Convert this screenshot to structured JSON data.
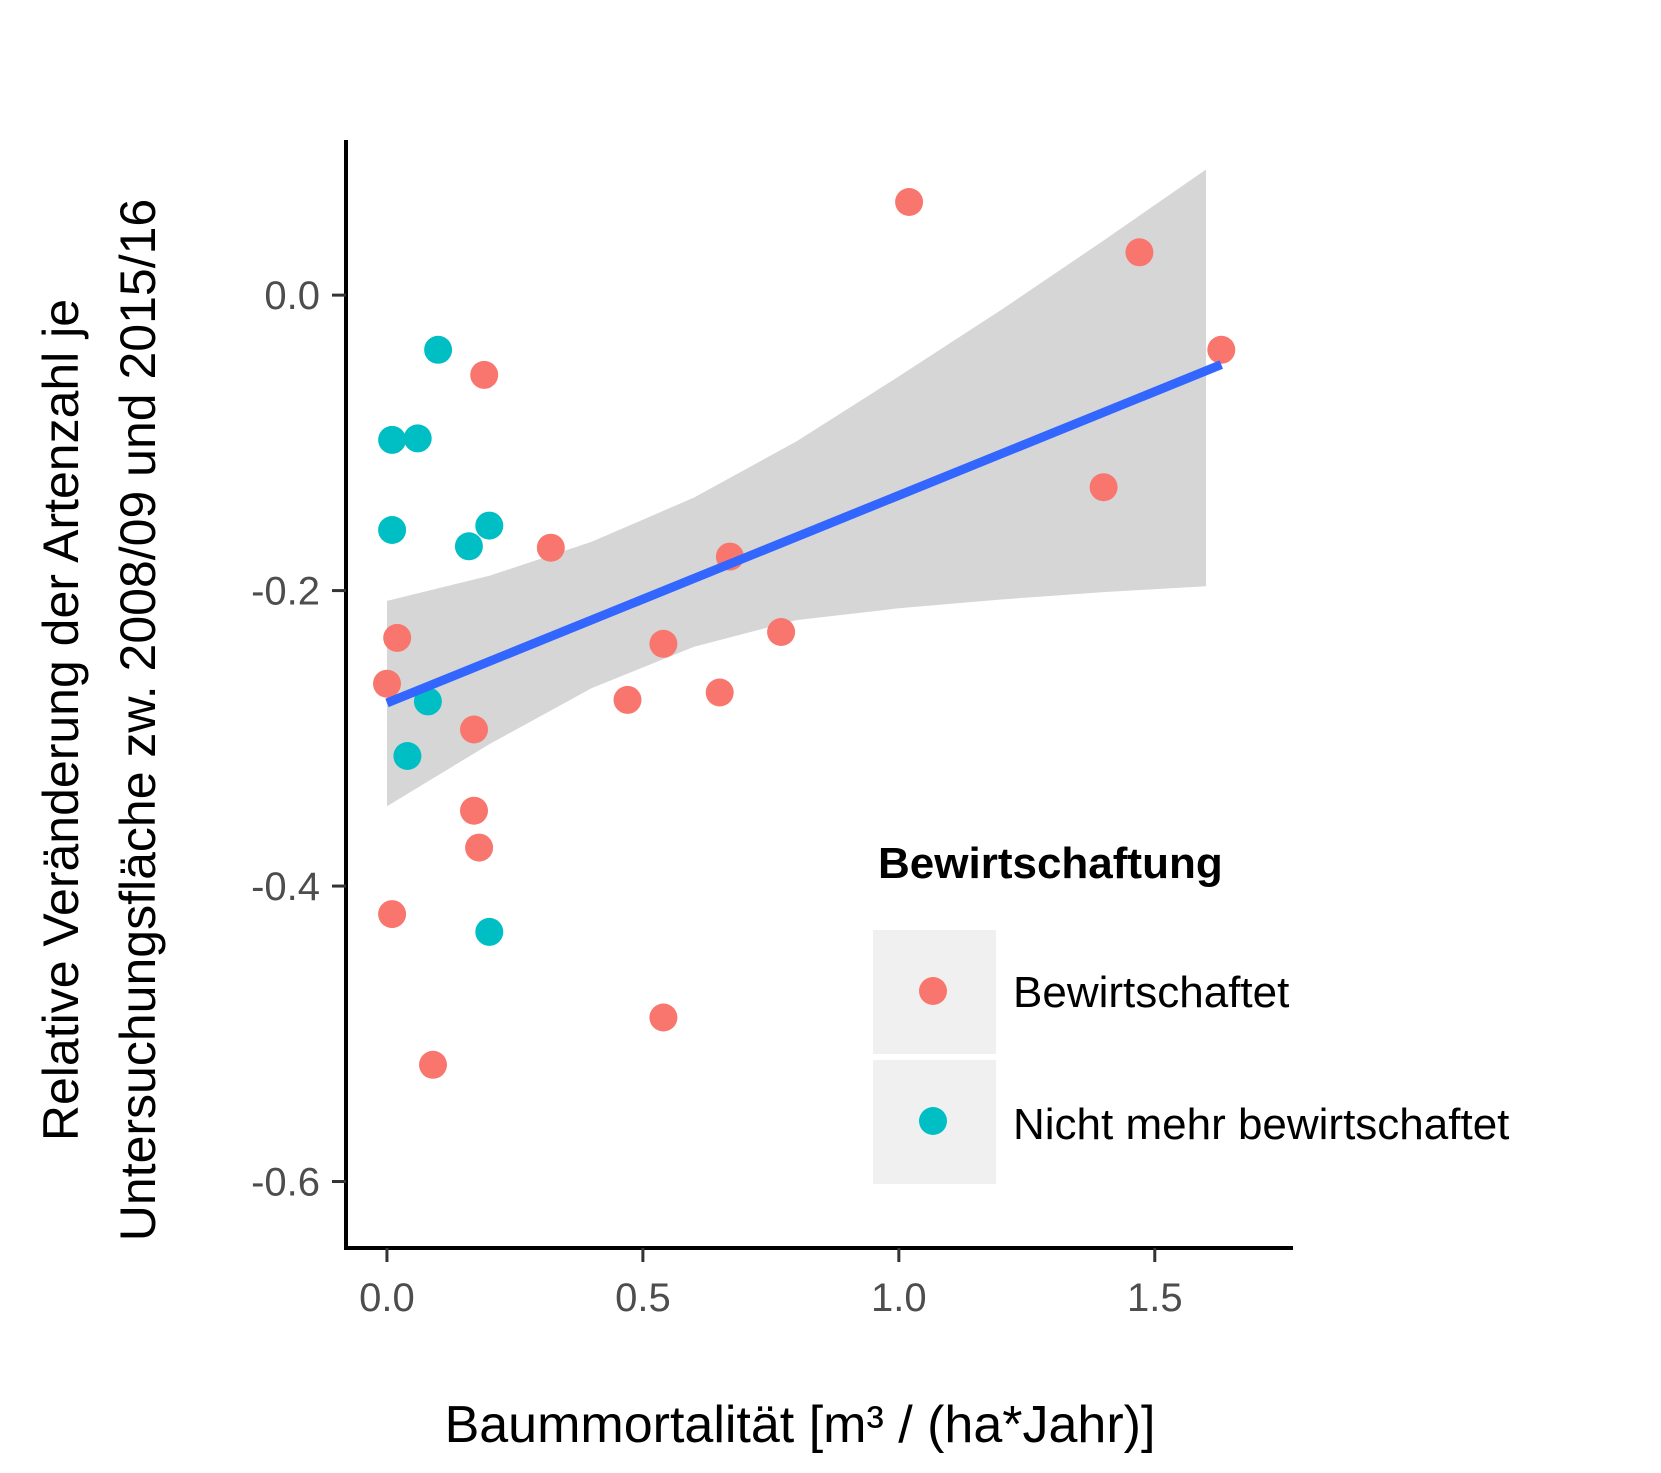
{
  "chart_data": {
    "type": "scatter",
    "title": "",
    "xlabel": "Baummortalität [m³ / (ha*Jahr)]",
    "ylabel_lines": [
      "Relative Veränderung der Artenzahl je",
      "Untersuchungsfläche zw. 2008/09 und 2015/16"
    ],
    "xlim": [
      -0.08,
      1.77
    ],
    "ylim": [
      -0.645,
      0.105
    ],
    "x_ticks": [
      0.0,
      0.5,
      1.0,
      1.5
    ],
    "x_tick_labels": [
      "0.0",
      "0.5",
      "1.0",
      "1.5"
    ],
    "y_ticks": [
      0.0,
      -0.2,
      -0.4,
      -0.6
    ],
    "y_tick_labels": [
      "0.0",
      "-0.2",
      "-0.4",
      "-0.6"
    ],
    "grid": false,
    "legend": {
      "title": "Bewirtschaftung",
      "position": "right",
      "entries": [
        "Bewirtschaftet",
        "Nicht mehr bewirtschaftet"
      ]
    },
    "series": [
      {
        "name": "Bewirtschaftet",
        "color": "#F8766D",
        "x": [
          1.02,
          1.47,
          1.63,
          0.19,
          1.4,
          0.32,
          0.67,
          0.02,
          0.54,
          0.77,
          0.0,
          0.47,
          0.65,
          0.17,
          0.17,
          0.18,
          0.01,
          0.54,
          0.09
        ],
        "y": [
          0.063,
          0.029,
          -0.037,
          -0.054,
          -0.13,
          -0.171,
          -0.177,
          -0.232,
          -0.236,
          -0.228,
          -0.263,
          -0.274,
          -0.269,
          -0.294,
          -0.349,
          -0.374,
          -0.419,
          -0.489,
          -0.521
        ]
      },
      {
        "name": "Nicht mehr bewirtschaftet",
        "color": "#00BFC4",
        "x": [
          0.1,
          0.01,
          0.06,
          0.01,
          0.2,
          0.16,
          0.08,
          0.04,
          0.2
        ],
        "y": [
          -0.037,
          -0.098,
          -0.097,
          -0.159,
          -0.156,
          -0.17,
          -0.275,
          -0.312,
          -0.431
        ]
      }
    ],
    "trend_line": {
      "color": "#3366FF",
      "x": [
        0.0,
        1.63
      ],
      "y": [
        -0.276,
        -0.047
      ]
    },
    "confidence_band": {
      "color": "#d6d6d6",
      "x": [
        0.0,
        0.2,
        0.4,
        0.6,
        0.8,
        1.0,
        1.2,
        1.4,
        1.6
      ],
      "upper": [
        -0.207,
        -0.19,
        -0.167,
        -0.137,
        -0.099,
        -0.055,
        -0.01,
        0.037,
        0.085
      ],
      "lower": [
        -0.346,
        -0.304,
        -0.266,
        -0.238,
        -0.22,
        -0.212,
        -0.206,
        -0.201,
        -0.197
      ]
    }
  }
}
